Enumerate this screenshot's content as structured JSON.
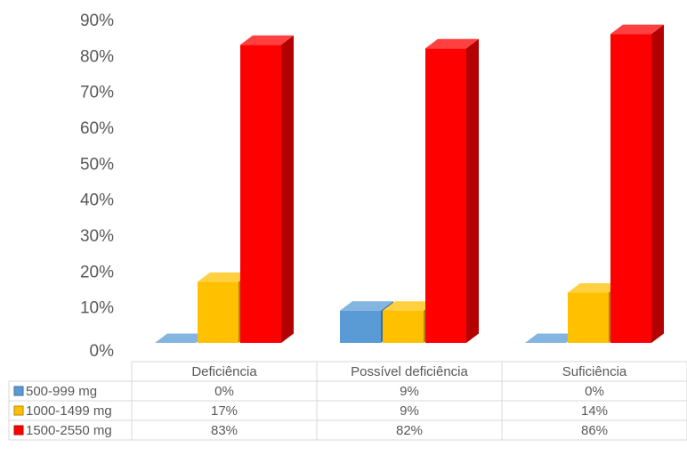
{
  "chart_data": {
    "type": "bar",
    "style": "3d-clustered-column-with-data-table",
    "categories": [
      "Deficiência",
      "Possível deficiência",
      "Suficiência"
    ],
    "series": [
      {
        "name": "500-999 mg",
        "values": [
          0,
          9,
          0
        ],
        "labels": [
          "0%",
          "9%",
          "0%"
        ],
        "color": "#5b9bd5"
      },
      {
        "name": "1000-1499 mg",
        "values": [
          17,
          9,
          14
        ],
        "labels": [
          "17%",
          "9%",
          "14%"
        ],
        "color": "#ffc000"
      },
      {
        "name": "1500-2550 mg",
        "values": [
          83,
          82,
          86
        ],
        "labels": [
          "83%",
          "82%",
          "86%"
        ],
        "color": "#ff0000"
      }
    ],
    "yticks": [
      "0%",
      "10%",
      "20%",
      "30%",
      "40%",
      "50%",
      "60%",
      "70%",
      "80%",
      "90%"
    ],
    "ylim": [
      0,
      90
    ],
    "grid": false,
    "legend": "data-table"
  }
}
